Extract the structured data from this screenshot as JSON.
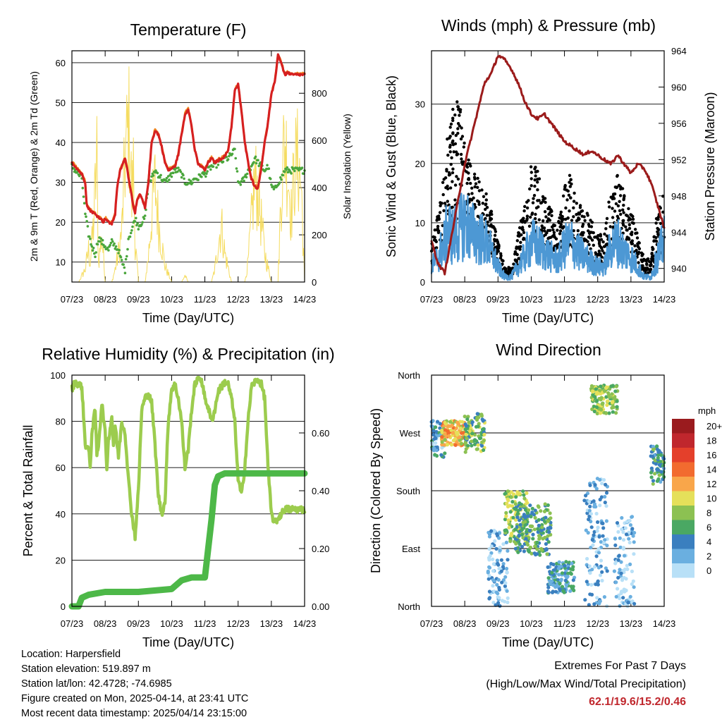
{
  "chart_data": [
    {
      "type": "line",
      "title": "Temperature (F)",
      "xlabel": "Time (Day/UTC)",
      "ylabel": "2m & 9m T (Red, Orange) & 2m Td (Green)",
      "y2label": "Solar Insolation (Yellow)",
      "categories": [
        "07/23",
        "08/23",
        "09/23",
        "10/23",
        "11/23",
        "12/23",
        "13/23",
        "14/23"
      ],
      "xlim": [
        0,
        7
      ],
      "ylim": [
        5,
        63
      ],
      "y2lim": [
        0,
        980
      ],
      "yticks": [
        10,
        20,
        30,
        40,
        50,
        60
      ],
      "y2ticks": [
        0,
        200,
        400,
        600,
        800
      ],
      "grid": true,
      "colors": {
        "t2m": "#d62020",
        "t9m": "#f08a24",
        "td2m": "#4aa63c",
        "solar": "#f5dc60"
      },
      "series": [
        {
          "name": "2m T",
          "x": [
            0,
            0.1,
            0.15,
            0.3,
            0.4,
            0.45,
            0.55,
            0.7,
            0.85,
            0.95,
            1,
            1.1,
            1.2,
            1.3,
            1.35,
            1.45,
            1.6,
            1.65,
            1.75,
            1.85,
            1.9,
            1.95,
            2.05,
            2.1,
            2.2,
            2.3,
            2.4,
            2.5,
            2.6,
            2.7,
            2.8,
            2.9,
            3.0,
            3.1,
            3.2,
            3.3,
            3.4,
            3.5,
            3.6,
            3.7,
            3.8,
            3.9,
            4.0,
            4.1,
            4.2,
            4.3,
            4.4,
            4.5,
            4.6,
            4.7,
            4.8,
            4.9,
            5.0,
            5.1,
            5.2,
            5.3,
            5.4,
            5.5,
            5.6,
            5.7,
            5.8,
            5.9,
            6.0,
            6.1,
            6.2,
            6.3,
            6.4,
            6.5,
            6.6,
            6.7,
            6.8,
            6.9,
            7.0
          ],
          "values": [
            35,
            34,
            33.5,
            32,
            30,
            24,
            23,
            22,
            21,
            20,
            21,
            20,
            19.6,
            22,
            28,
            33,
            36,
            34,
            29,
            24,
            22.5,
            25,
            27,
            26,
            23.5,
            30,
            40,
            43,
            42,
            39,
            35,
            33,
            33.5,
            34,
            37,
            42,
            47,
            48.5,
            44,
            38,
            34.5,
            34,
            33,
            35,
            36,
            35,
            35.5,
            36,
            36.5,
            38,
            44,
            53,
            54.5,
            48,
            40,
            35,
            31,
            29,
            28.5,
            34,
            40,
            45,
            52,
            55,
            62,
            60,
            57,
            57.5,
            57,
            57,
            57,
            57,
            57
          ]
        },
        {
          "name": "2m Td",
          "x": [
            0,
            0.1,
            0.2,
            0.3,
            0.4,
            0.5,
            0.6,
            0.7,
            0.8,
            0.9,
            1.0,
            1.1,
            1.2,
            1.3,
            1.4,
            1.5,
            1.6,
            1.7,
            1.8,
            1.9,
            2.0,
            2.1,
            2.2,
            2.3,
            2.4,
            2.5,
            2.6,
            2.7,
            2.8,
            2.9,
            3.0,
            3.1,
            3.2,
            3.3,
            3.4,
            3.5,
            3.6,
            3.7,
            3.8,
            3.9,
            4.0,
            4.1,
            4.2,
            4.3,
            4.4,
            4.5,
            4.6,
            4.7,
            4.8,
            4.9,
            5.0,
            5.1,
            5.2,
            5.3,
            5.4,
            5.5,
            5.6,
            5.7,
            5.8,
            5.9,
            6.0,
            6.1,
            6.2,
            6.3,
            6.4,
            6.5,
            6.6,
            6.7,
            6.8,
            6.9,
            7.0
          ],
          "values": [
            34,
            33,
            32,
            31,
            22,
            17,
            14,
            12,
            16,
            15,
            14,
            13,
            15,
            14,
            13,
            10,
            8,
            16,
            18,
            21,
            19,
            20,
            21,
            30,
            31,
            33,
            32,
            31,
            30,
            31,
            32,
            33,
            33,
            32,
            30,
            30,
            30,
            31,
            31,
            32,
            32,
            33,
            34,
            34,
            35,
            35,
            36,
            36,
            37,
            38,
            30,
            30,
            31,
            33,
            34,
            36,
            35,
            34,
            33,
            34,
            29,
            28,
            30,
            31,
            33,
            33,
            33,
            33,
            33,
            33,
            33
          ]
        },
        {
          "name": "Solar",
          "x": [
            0,
            0.2,
            0.3,
            0.4,
            0.5,
            0.55,
            0.65,
            0.75,
            0.8,
            0.9,
            1.0,
            1.2,
            1.3,
            1.4,
            1.5,
            1.6,
            1.7,
            1.75,
            1.8,
            1.85,
            1.9,
            2.0,
            2.2,
            2.3,
            2.4,
            2.5,
            2.6,
            2.8,
            3.0,
            3.2,
            3.3,
            3.4,
            3.5,
            3.6,
            3.8,
            4.0,
            4.2,
            4.3,
            4.4,
            4.5,
            4.6,
            4.8,
            5.0,
            5.2,
            5.3,
            5.4,
            5.5,
            5.6,
            5.8,
            6.0,
            6.2,
            6.3,
            6.4,
            6.5,
            6.6,
            6.7,
            6.8,
            6.9,
            7.0
          ],
          "values": [
            0,
            0,
            40,
            80,
            200,
            120,
            360,
            780,
            120,
            300,
            0,
            0,
            80,
            180,
            320,
            760,
            980,
            900,
            500,
            700,
            260,
            0,
            0,
            160,
            420,
            620,
            380,
            100,
            0,
            0,
            0,
            40,
            0,
            0,
            0,
            0,
            0,
            80,
            240,
            360,
            180,
            0,
            0,
            0,
            120,
            380,
            640,
            560,
            180,
            0,
            0,
            600,
            900,
            700,
            420,
            720,
            760,
            600,
            0
          ]
        }
      ]
    },
    {
      "type": "scatter",
      "title": "Winds (mph) & Pressure (mb)",
      "xlabel": "Time (Day/UTC)",
      "ylabel": "Sonic Wind & Gust (Blue, Black)",
      "y2label": "Station Pressure (Maroon)",
      "categories": [
        "07/23",
        "08/23",
        "09/23",
        "10/23",
        "11/23",
        "12/23",
        "13/23",
        "14/23"
      ],
      "xlim": [
        0,
        7
      ],
      "ylim": [
        0,
        39
      ],
      "y2lim": [
        938.5,
        964
      ],
      "yticks": [
        0,
        10,
        20,
        30
      ],
      "y2ticks": [
        940,
        944,
        948,
        952,
        956,
        960,
        964
      ],
      "grid": true,
      "colors": {
        "wind": "#4d98d4",
        "gust": "#000000",
        "pressure": "#9b1b1b"
      },
      "series": [
        {
          "name": "Sonic Wind (mean)",
          "x": [
            0,
            0.2,
            0.4,
            0.5,
            0.6,
            0.8,
            1.0,
            1.2,
            1.4,
            1.6,
            1.8,
            2.0,
            2.2,
            2.4,
            2.6,
            2.8,
            3.0,
            3.2,
            3.4,
            3.6,
            3.8,
            4.0,
            4.2,
            4.4,
            4.6,
            4.8,
            5.0,
            5.2,
            5.4,
            5.6,
            5.8,
            6.0,
            6.2,
            6.4,
            6.6,
            6.8,
            7.0
          ],
          "values": [
            3,
            5,
            8,
            11,
            9,
            10,
            12,
            10,
            9,
            8,
            6,
            3,
            1,
            1,
            3,
            5,
            8,
            7,
            6,
            5,
            4,
            7,
            8,
            6,
            5,
            4,
            3,
            3,
            7,
            8,
            6,
            5,
            3,
            1,
            1,
            5,
            8
          ]
        },
        {
          "name": "Gust (mean)",
          "x": [
            0,
            0.2,
            0.4,
            0.5,
            0.6,
            0.8,
            1.0,
            1.2,
            1.4,
            1.6,
            1.8,
            2.0,
            2.2,
            2.4,
            2.6,
            2.8,
            3.0,
            3.2,
            3.4,
            3.6,
            3.8,
            4.0,
            4.2,
            4.4,
            4.6,
            4.8,
            5.0,
            5.2,
            5.4,
            5.6,
            5.8,
            6.0,
            6.2,
            6.4,
            6.6,
            6.8,
            7.0
          ],
          "values": [
            6,
            9,
            14,
            20,
            22,
            24,
            18,
            14,
            13,
            12,
            9,
            5,
            2,
            2,
            6,
            10,
            15,
            14,
            11,
            9,
            7,
            12,
            14,
            10,
            9,
            8,
            6,
            6,
            12,
            14,
            11,
            9,
            6,
            3,
            3,
            9,
            13
          ]
        },
        {
          "name": "Station Pressure",
          "x": [
            0,
            0.2,
            0.4,
            0.6,
            0.8,
            1.0,
            1.2,
            1.4,
            1.6,
            1.8,
            2.0,
            2.2,
            2.4,
            2.6,
            2.8,
            3.0,
            3.2,
            3.4,
            3.6,
            3.8,
            4.0,
            4.2,
            4.4,
            4.6,
            4.8,
            5.0,
            5.2,
            5.4,
            5.6,
            5.8,
            6.0,
            6.2,
            6.4,
            6.6,
            6.8,
            7.0
          ],
          "values": [
            943,
            940.5,
            939.5,
            943.5,
            947.5,
            951.5,
            954.5,
            957.5,
            960.5,
            961.5,
            963.5,
            963,
            962,
            960.5,
            958.5,
            957,
            956.5,
            957,
            956,
            955,
            954,
            953.5,
            953,
            952.5,
            953,
            952.5,
            952,
            951.5,
            952.5,
            951.5,
            950.5,
            951.5,
            951,
            949.5,
            947,
            944.5
          ]
        }
      ]
    },
    {
      "type": "line",
      "title": "Relative Humidity (%) & Precipitation (in)",
      "xlabel": "Time (Day/UTC)",
      "ylabel": "Percent & Total Rainfall",
      "categories": [
        "07/23",
        "08/23",
        "09/23",
        "10/23",
        "11/23",
        "12/23",
        "13/23",
        "14/23"
      ],
      "xlim": [
        0,
        7
      ],
      "ylim": [
        0,
        100
      ],
      "y2lim": [
        0,
        0.8
      ],
      "yticks": [
        0,
        20,
        40,
        60,
        80,
        100
      ],
      "y2ticks": [
        0.0,
        0.2,
        0.4,
        0.6
      ],
      "grid": true,
      "colors": {
        "rh": "#9ccc4e",
        "precip": "#4db848"
      },
      "series": [
        {
          "name": "Relative Humidity",
          "x": [
            0,
            0.1,
            0.2,
            0.3,
            0.4,
            0.5,
            0.55,
            0.6,
            0.7,
            0.75,
            0.8,
            0.9,
            1.0,
            1.05,
            1.1,
            1.2,
            1.25,
            1.3,
            1.4,
            1.5,
            1.6,
            1.7,
            1.8,
            1.9,
            2.0,
            2.1,
            2.2,
            2.3,
            2.4,
            2.5,
            2.6,
            2.7,
            2.8,
            2.9,
            3.0,
            3.1,
            3.2,
            3.3,
            3.4,
            3.5,
            3.6,
            3.7,
            3.8,
            3.9,
            4.0,
            4.1,
            4.2,
            4.3,
            4.4,
            4.5,
            4.6,
            4.7,
            4.8,
            4.9,
            5.0,
            5.1,
            5.2,
            5.3,
            5.4,
            5.5,
            5.6,
            5.7,
            5.8,
            5.9,
            6.0,
            6.1,
            6.2,
            6.3,
            6.4,
            6.5,
            6.6,
            6.7,
            6.8,
            6.9,
            7.0
          ],
          "values": [
            94,
            97,
            96,
            95,
            70,
            68,
            60,
            75,
            85,
            65,
            70,
            88,
            75,
            60,
            72,
            82,
            70,
            78,
            65,
            80,
            75,
            55,
            40,
            30,
            50,
            85,
            90,
            92,
            88,
            70,
            48,
            40,
            45,
            80,
            94,
            96,
            90,
            80,
            60,
            68,
            85,
            96,
            99,
            98,
            90,
            86,
            80,
            85,
            93,
            95,
            97,
            96,
            90,
            80,
            55,
            48,
            60,
            80,
            95,
            97,
            98,
            96,
            90,
            60,
            40,
            36,
            38,
            40,
            42,
            42,
            42,
            42,
            42,
            42,
            42
          ]
        },
        {
          "name": "Total Precipitation",
          "x": [
            0,
            0.2,
            0.3,
            0.5,
            1.0,
            2.0,
            3.0,
            3.3,
            3.6,
            4.0,
            4.1,
            4.2,
            4.3,
            4.4,
            4.6,
            5.0,
            6.0,
            7.0
          ],
          "values": [
            0,
            0,
            0.03,
            0.04,
            0.05,
            0.05,
            0.06,
            0.09,
            0.1,
            0.1,
            0.2,
            0.3,
            0.42,
            0.45,
            0.46,
            0.46,
            0.46,
            0.46
          ]
        }
      ]
    },
    {
      "type": "scatter",
      "title": "Wind Direction",
      "xlabel": "Time (Day/UTC)",
      "ylabel": "Direction (Colored By Speed)",
      "categories": [
        "07/23",
        "08/23",
        "09/23",
        "10/23",
        "11/23",
        "12/23",
        "13/23",
        "14/23"
      ],
      "xlim": [
        0,
        7
      ],
      "ylim": [
        0,
        360
      ],
      "ytick_labels": [
        "North",
        "East",
        "South",
        "West",
        "North"
      ],
      "legend_title": "mph",
      "legend_labels": [
        "20+",
        "18",
        "16",
        "14",
        "12",
        "10",
        "8",
        "6",
        "4",
        "2",
        "0"
      ],
      "legend_colors": [
        "#9a1b1e",
        "#c0272d",
        "#e4402b",
        "#f26b2f",
        "#f9a64a",
        "#e5e05a",
        "#8cc152",
        "#4aa863",
        "#3a7fbf",
        "#6aafe0",
        "#b8e0f7"
      ],
      "legend_placement": "right",
      "grid": true,
      "clusters": [
        {
          "x0": 0.0,
          "x1": 0.4,
          "dir_lo": 230,
          "dir_hi": 290,
          "speed": 3
        },
        {
          "x0": 0.3,
          "x1": 1.0,
          "dir_lo": 250,
          "dir_hi": 290,
          "speed": 11
        },
        {
          "x0": 1.0,
          "x1": 1.6,
          "dir_lo": 240,
          "dir_hi": 300,
          "speed": 7
        },
        {
          "x0": 1.7,
          "x1": 2.3,
          "dir_lo": 0,
          "dir_hi": 120,
          "speed": 2
        },
        {
          "x0": 2.2,
          "x1": 2.9,
          "dir_lo": 100,
          "dir_hi": 180,
          "speed": 8
        },
        {
          "x0": 2.5,
          "x1": 3.6,
          "dir_lo": 80,
          "dir_hi": 160,
          "speed": 6
        },
        {
          "x0": 3.5,
          "x1": 4.3,
          "dir_lo": 20,
          "dir_hi": 70,
          "speed": 4
        },
        {
          "x0": 4.8,
          "x1": 5.6,
          "dir_lo": 300,
          "dir_hi": 345,
          "speed": 8
        },
        {
          "x0": 4.6,
          "x1": 5.3,
          "dir_lo": 0,
          "dir_hi": 200,
          "speed": 2
        },
        {
          "x0": 5.5,
          "x1": 6.1,
          "dir_lo": 0,
          "dir_hi": 140,
          "speed": 1
        },
        {
          "x0": 6.6,
          "x1": 7.0,
          "dir_lo": 190,
          "dir_hi": 250,
          "speed": 5
        }
      ]
    }
  ],
  "info": {
    "location": "Location: Harpersfield",
    "elevation": "Station elevation: 519.897 m",
    "latlon": "Station lat/lon: 42.4728; -74.6985",
    "created": "Figure created on Mon, 2025-04-14, at 23:41 UTC",
    "recent": "Most recent data timestamp: 2025/04/14 23:15:00"
  },
  "extremes": {
    "line1": "Extremes For Past 7 Days",
    "line2": "(High/Low/Max Wind/Total Precipitation)",
    "values": "62.1/19.6/15.2/0.46"
  }
}
